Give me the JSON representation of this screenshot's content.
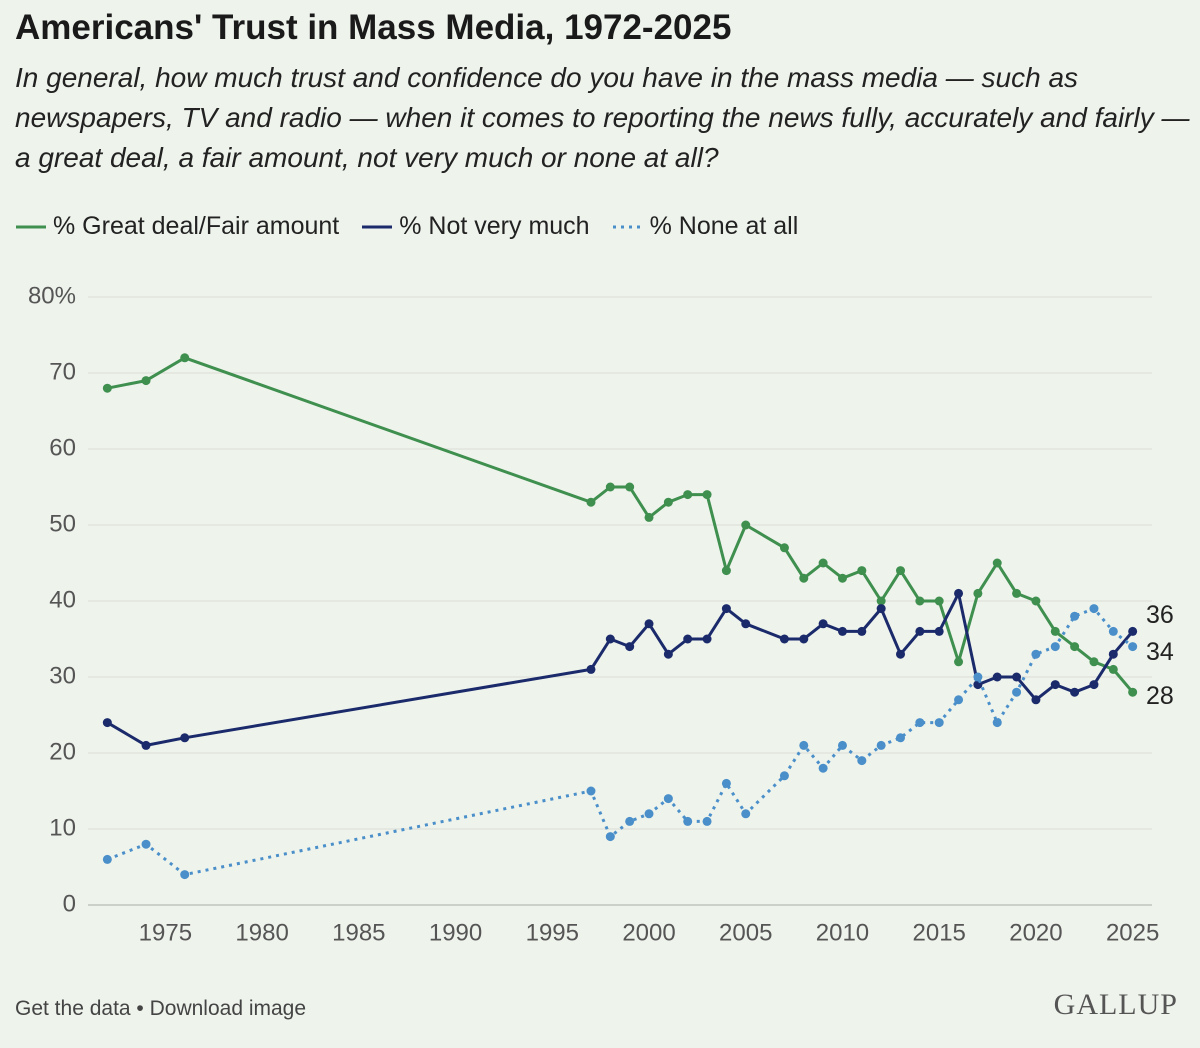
{
  "chart_data": {
    "type": "line",
    "title": "Americans' Trust in Mass Media, 1972-2025",
    "subtitle": "In general, how much trust and confidence do you have in the mass media — such as newspapers, TV and radio — when it comes to reporting the news fully, accurately and fairly — a great deal, a fair amount, not very much or none at all?",
    "x": [
      1972,
      1974,
      1976,
      1997,
      1998,
      1999,
      2000,
      2001,
      2002,
      2003,
      2004,
      2005,
      2007,
      2008,
      2009,
      2010,
      2011,
      2012,
      2013,
      2014,
      2015,
      2016,
      2017,
      2018,
      2019,
      2020,
      2021,
      2022,
      2023,
      2024,
      2025
    ],
    "series": [
      {
        "name": "% Great deal/Fair amount",
        "color": "#3f8f4f",
        "linestyle": "solid",
        "values": [
          68,
          69,
          72,
          53,
          55,
          55,
          51,
          53,
          54,
          54,
          44,
          50,
          47,
          43,
          45,
          43,
          44,
          40,
          44,
          40,
          40,
          32,
          41,
          45,
          41,
          40,
          36,
          34,
          32,
          31,
          28
        ]
      },
      {
        "name": "% Not very much",
        "color": "#1b2a6b",
        "linestyle": "solid",
        "values": [
          24,
          21,
          22,
          31,
          35,
          34,
          37,
          33,
          35,
          35,
          39,
          37,
          35,
          35,
          37,
          36,
          36,
          39,
          33,
          36,
          36,
          41,
          29,
          30,
          30,
          27,
          29,
          28,
          29,
          33,
          36
        ]
      },
      {
        "name": "% None at all",
        "color": "#4a8fc9",
        "linestyle": "dotted",
        "values": [
          6,
          8,
          4,
          15,
          9,
          11,
          12,
          14,
          11,
          11,
          16,
          12,
          17,
          21,
          18,
          21,
          19,
          21,
          22,
          24,
          24,
          27,
          30,
          24,
          28,
          33,
          34,
          38,
          39,
          36,
          34
        ]
      }
    ],
    "xlim": [
      1971,
      2026
    ],
    "xticks": [
      1975,
      1980,
      1985,
      1990,
      1995,
      2000,
      2005,
      2010,
      2015,
      2020,
      2025
    ],
    "ylim": [
      0,
      80
    ],
    "yticks": [
      0,
      10,
      20,
      30,
      40,
      50,
      60,
      70,
      {
        "value": 80,
        "label": "80%"
      }
    ],
    "grid": true,
    "footer": "Get the data • Download image",
    "source": "GALLUP"
  }
}
